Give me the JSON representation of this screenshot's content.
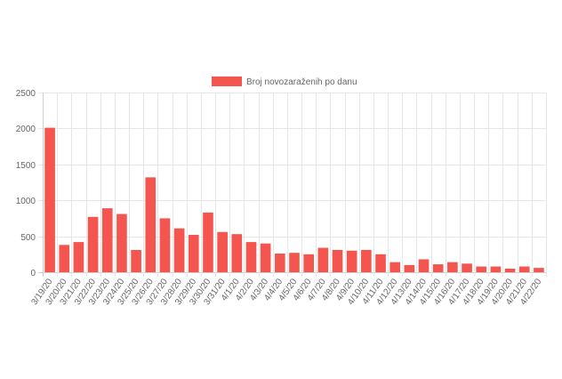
{
  "chart_data": {
    "type": "bar",
    "categories": [
      "3/19/20",
      "3/20/20",
      "3/21/20",
      "3/22/20",
      "3/23/20",
      "3/24/20",
      "3/25/20",
      "3/26/20",
      "3/27/20",
      "3/28/20",
      "3/29/20",
      "3/30/20",
      "3/31/20",
      "4/1/20",
      "4/2/20",
      "4/3/20",
      "4/4/20",
      "4/5/20",
      "4/6/20",
      "4/7/20",
      "4/8/20",
      "4/9/20",
      "4/10/20",
      "4/11/20",
      "4/12/20",
      "4/13/20",
      "4/14/20",
      "4/15/20",
      "4/16/20",
      "4/17/20",
      "4/18/20",
      "4/19/20",
      "4/20/20",
      "4/21/20",
      "4/22/20"
    ],
    "series": [
      {
        "name": "Broj novozaraženih po danu",
        "color": "#f4564f",
        "values": [
          2010,
          380,
          420,
          770,
          890,
          810,
          310,
          1320,
          750,
          610,
          520,
          830,
          560,
          530,
          420,
          400,
          260,
          270,
          250,
          340,
          310,
          300,
          310,
          250,
          140,
          100,
          180,
          110,
          140,
          120,
          80,
          80,
          50,
          80,
          60
        ]
      }
    ],
    "xlabel": "",
    "ylabel": "",
    "ylim": [
      0,
      2500
    ],
    "yticks": [
      0,
      500,
      1000,
      1500,
      2000,
      2500
    ],
    "grid": true,
    "legend": "top-center"
  }
}
